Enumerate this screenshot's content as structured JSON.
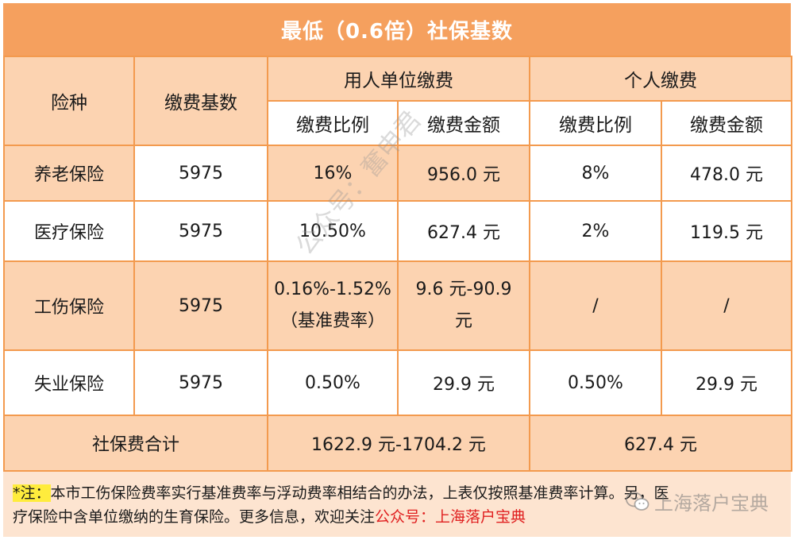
{
  "title": "最低（0.6倍）社保基数",
  "headers": {
    "insurance_type": "险种",
    "base": "缴费基数",
    "employer": "用人单位缴费",
    "individual": "个人缴费",
    "ratio": "缴费比例",
    "amount": "缴费金额"
  },
  "rows": [
    {
      "name": "养老保险",
      "base": "5975",
      "employer_ratio": "16%",
      "employer_amount": "956.0 元",
      "individual_ratio": "8%",
      "individual_amount": "478.0 元"
    },
    {
      "name": "医疗保险",
      "base": "5975",
      "employer_ratio": "10.50%",
      "employer_amount": "627.4 元",
      "individual_ratio": "2%",
      "individual_amount": "119.5 元"
    },
    {
      "name": "工伤保险",
      "base": "5975",
      "employer_ratio": "0.16%-1.52%",
      "employer_ratio_note": "（基准费率）",
      "employer_amount_line1": "9.6 元-90.9",
      "employer_amount_line2": "元",
      "individual_ratio": "/",
      "individual_amount": "/"
    },
    {
      "name": "失业保险",
      "base": "5975",
      "employer_ratio": "0.50%",
      "employer_amount": "29.9 元",
      "individual_ratio": "0.50%",
      "individual_amount": "29.9 元"
    }
  ],
  "total": {
    "label": "社保费合计",
    "employer": "1622.9 元-1704.2 元",
    "individual": "627.4 元"
  },
  "note": {
    "prefix": "*注：",
    "line1": "本市工伤保险费率实行基准费率与浮动费率相结合的办法，上表仅按照基准费率计算。另，医",
    "line2_pre": "疗保险中含单位缴纳的生育保险。更多信息，欢迎关注",
    "line2_link": "公众号：上海落户宝典"
  },
  "watermark": {
    "diagonal": "公众号：奮申君",
    "brand": "上海落户宝典",
    "brand_icon": "wechat-icon"
  },
  "colors": {
    "header_orange": "#f5a05e",
    "border_orange": "#f39a4e",
    "peach": "#fcd3b1",
    "note_bg": "#fde4d0",
    "highlight_yellow": "#ffec3d",
    "link_red": "#e02020"
  }
}
